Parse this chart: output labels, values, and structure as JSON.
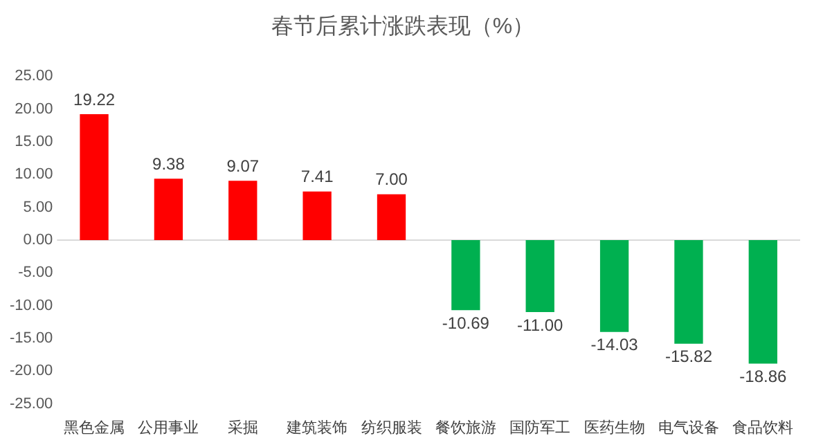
{
  "chart_data": {
    "type": "bar",
    "title": "春节后累计涨跌表现（%）",
    "categories": [
      "黑色金属",
      "公用事业",
      "采掘",
      "建筑装饰",
      "纺织服装",
      "餐饮旅游",
      "国防军工",
      "医药生物",
      "电气设备",
      "食品饮料"
    ],
    "values": [
      19.22,
      9.38,
      9.07,
      7.41,
      7.0,
      -10.69,
      -11.0,
      -14.03,
      -15.82,
      -18.86
    ],
    "value_labels": [
      "19.22",
      "9.38",
      "9.07",
      "7.41",
      "7.00",
      "-10.69",
      "-11.00",
      "-14.03",
      "-15.82",
      "-18.86"
    ],
    "colors": [
      "#ff0000",
      "#ff0000",
      "#ff0000",
      "#ff0000",
      "#ff0000",
      "#00b050",
      "#00b050",
      "#00b050",
      "#00b050",
      "#00b050"
    ],
    "ylim": [
      -25,
      25
    ],
    "yticks": [
      {
        "value": -25,
        "label": "-25.00"
      },
      {
        "value": -20,
        "label": "-20.00"
      },
      {
        "value": -15,
        "label": "-15.00"
      },
      {
        "value": -10,
        "label": "-10.00"
      },
      {
        "value": -5,
        "label": "-5.00"
      },
      {
        "value": 0,
        "label": "0.00"
      },
      {
        "value": 5,
        "label": "5.00"
      },
      {
        "value": 10,
        "label": "10.00"
      },
      {
        "value": 15,
        "label": "15.00"
      },
      {
        "value": 20,
        "label": "20.00"
      },
      {
        "value": 25,
        "label": "25.00"
      }
    ],
    "ref_lines": [
      {
        "axis": "y",
        "value": 0,
        "color": "#d9d9d9"
      }
    ],
    "grid": false,
    "legend": false
  }
}
